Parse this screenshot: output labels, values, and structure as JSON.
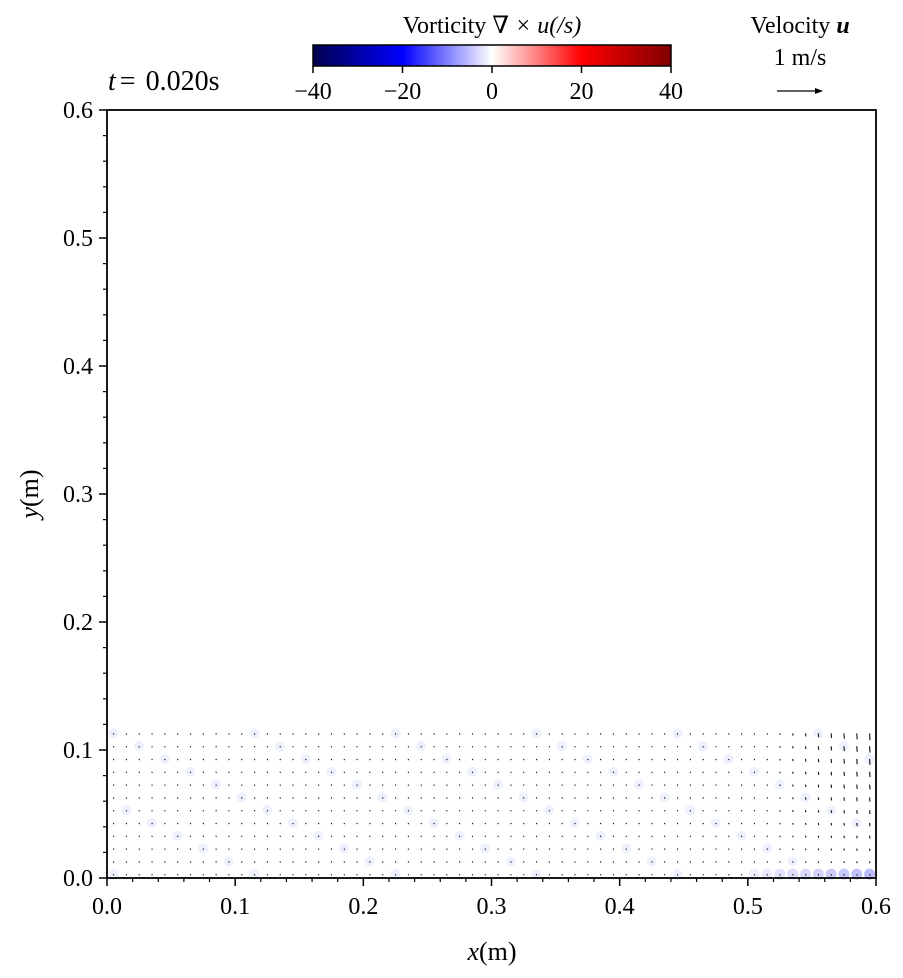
{
  "chart_data": {
    "type": "quiver",
    "time_label": "0.020s",
    "xlabel_var": "x",
    "xlabel_unit": "(m)",
    "ylabel_var": "y",
    "ylabel_unit": "(m)",
    "xlim": [
      0.0,
      0.6
    ],
    "ylim": [
      0.0,
      0.6
    ],
    "x_ticks": [
      "0.0",
      "0.1",
      "0.2",
      "0.3",
      "0.4",
      "0.5",
      "0.6"
    ],
    "y_ticks": [
      "0.0",
      "0.1",
      "0.2",
      "0.3",
      "0.4",
      "0.5",
      "0.6"
    ],
    "colorbar": {
      "title_text": "Vorticity",
      "title_math": "∇ × u(/s)",
      "range": [
        -40,
        40
      ],
      "ticks": [
        "−40",
        "−20",
        "0",
        "20",
        "40"
      ],
      "colormap": "seismic",
      "colors": [
        "#00004d",
        "#0000ff",
        "#ffffff",
        "#ff0000",
        "#800000"
      ]
    },
    "velocity_key": {
      "title": "Velocity",
      "symbol": "u",
      "label": "1 m/s",
      "magnitude": 1.0
    },
    "field": {
      "description_region": "water column",
      "x_range": [
        0.005,
        0.595
      ],
      "y_range": [
        0.003,
        0.113
      ],
      "nx": 60,
      "ny": 12,
      "vorticity_hotspot": {
        "x": [
          0.5,
          0.6
        ],
        "y": [
          0.0,
          0.01
        ],
        "value": -12
      }
    }
  }
}
